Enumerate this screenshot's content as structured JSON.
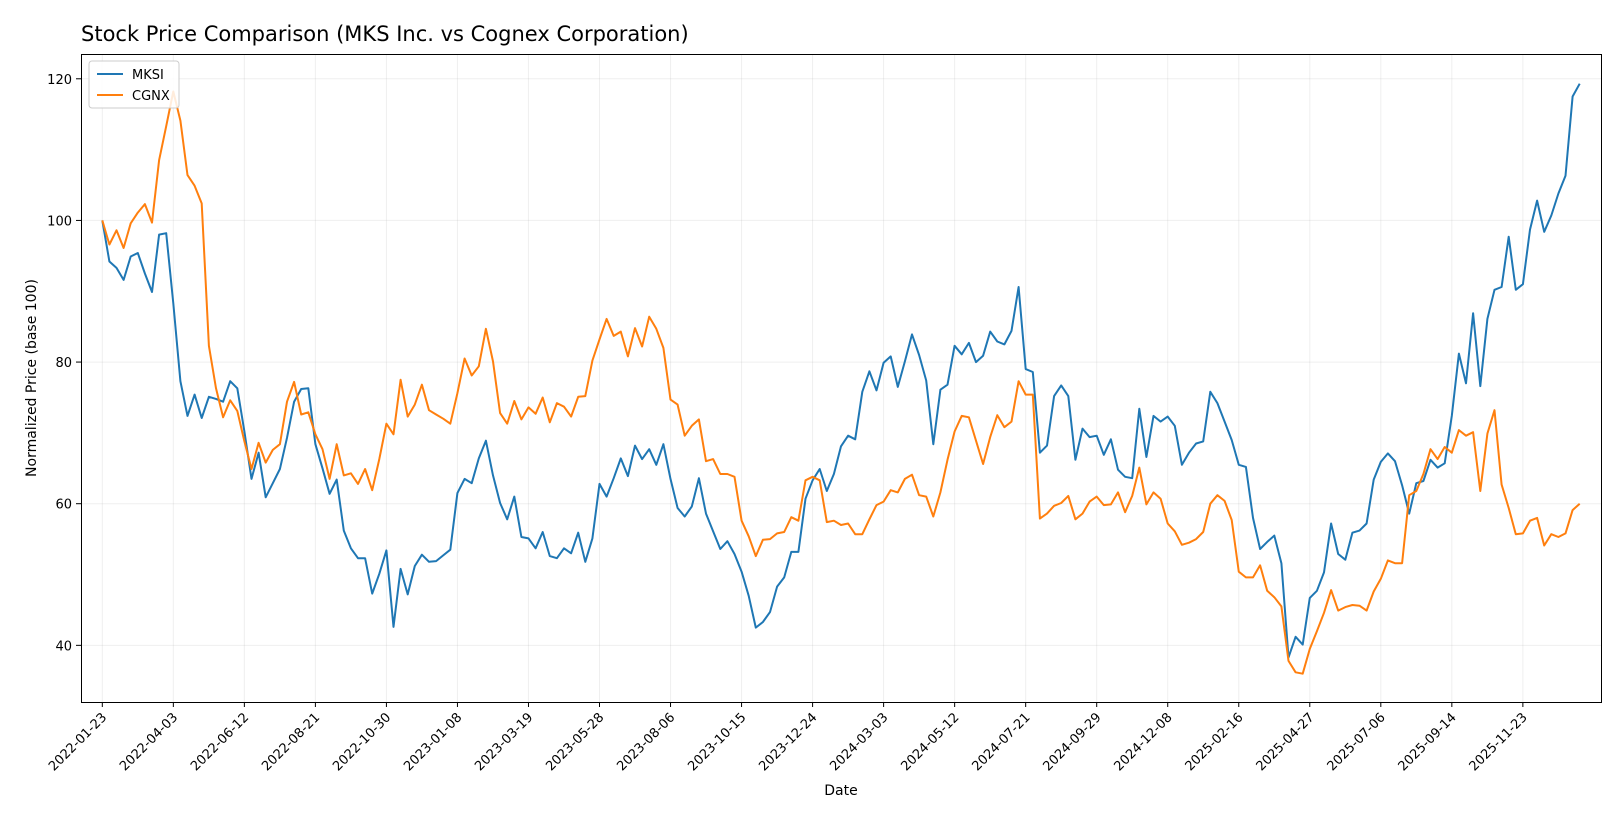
{
  "chart_data": {
    "type": "line",
    "title": "Stock Price Comparison (MKS Inc. vs Cognex Corporation)",
    "xlabel": "Date",
    "ylabel": "Normalized Price (base 100)",
    "x_tick_labels": [
      "2022-01-23",
      "2022-04-03",
      "2022-06-12",
      "2022-08-21",
      "2022-10-30",
      "2023-01-08",
      "2023-03-19",
      "2023-05-28",
      "2023-08-06",
      "2023-10-15",
      "2023-12-24",
      "2024-03-03",
      "2024-05-12",
      "2024-07-21",
      "2024-09-29",
      "2024-12-08",
      "2025-02-16",
      "2025-04-27",
      "2025-07-06",
      "2025-09-14",
      "2025-11-23"
    ],
    "y_ticks": [
      40,
      60,
      80,
      100,
      120
    ],
    "ylim": [
      32,
      123.5
    ],
    "xlim": [
      "2022-01-02",
      "2026-02-08"
    ],
    "grid": true,
    "legend_position": "top-left",
    "series": [
      {
        "name": "MKSI",
        "color": "#1f77b4",
        "start": "2022-01-23",
        "step_days": 7,
        "values": [
          100,
          94.2,
          93.3,
          91.6,
          94.9,
          95.4,
          92.5,
          89.9,
          98.0,
          98.2,
          88.3,
          77.3,
          72.4,
          75.4,
          72.1,
          75.1,
          74.8,
          74.4,
          77.3,
          76.3,
          70.2,
          63.5,
          67.2,
          60.9,
          62.9,
          64.9,
          69.3,
          74.4,
          76.2,
          76.3,
          68.4,
          65.0,
          61.4,
          63.4,
          56.2,
          53.7,
          52.3,
          52.3,
          47.3,
          50.1,
          53.4,
          42.6,
          50.8,
          47.2,
          51.2,
          52.8,
          51.8,
          51.9,
          52.7,
          53.5,
          61.5,
          63.5,
          62.9,
          66.4,
          68.9,
          64.0,
          60.1,
          57.8,
          61.0,
          55.3,
          55.1,
          53.7,
          56.0,
          52.6,
          52.3,
          53.7,
          53.0,
          55.9,
          51.8,
          55.1,
          62.8,
          61.0,
          63.6,
          66.4,
          63.9,
          68.2,
          66.3,
          67.7,
          65.5,
          68.4,
          63.5,
          59.4,
          58.2,
          59.6,
          63.6,
          58.6,
          56.1,
          53.6,
          54.7,
          52.9,
          50.4,
          47.0,
          42.5,
          43.3,
          44.7,
          48.3,
          49.6,
          53.2,
          53.2,
          60.7,
          63.3,
          64.9,
          61.8,
          64.2,
          68.1,
          69.6,
          69.1,
          75.8,
          78.7,
          76.0,
          79.9,
          80.8,
          76.5,
          80.1,
          83.9,
          81.0,
          77.4,
          68.4,
          76.1,
          76.8,
          82.3,
          81.1,
          82.7,
          80.0,
          80.9,
          84.3,
          82.9,
          82.5,
          84.4,
          90.6,
          79.0,
          78.6,
          67.2,
          68.2,
          75.2,
          76.7,
          75.2,
          66.2,
          70.6,
          69.4,
          69.6,
          66.9,
          69.1,
          64.8,
          63.8,
          63.6,
          73.4,
          66.6,
          72.4,
          71.6,
          72.3,
          71.0,
          65.5,
          67.2,
          68.5,
          68.8,
          75.8,
          74.2,
          71.6,
          69.0,
          65.5,
          65.2,
          58.0,
          53.6,
          54.6,
          55.5,
          51.6,
          38.3,
          41.2,
          40.1,
          46.7,
          47.7,
          50.3,
          57.2,
          52.9,
          52.1,
          55.9,
          56.2,
          57.2,
          63.4,
          65.9,
          67.1,
          66.0,
          62.6,
          58.6,
          62.9,
          63.2,
          66.2,
          65.1,
          65.7,
          72.4,
          81.2,
          77.0,
          86.9,
          76.6,
          86.1,
          90.2,
          90.6,
          97.7,
          90.2,
          91.0,
          98.7,
          102.8,
          98.4,
          100.7,
          103.8,
          106.3,
          117.5,
          119.3
        ]
      },
      {
        "name": "CGNX",
        "color": "#ff7f0e",
        "start": "2022-01-23",
        "step_days": 7,
        "values": [
          100,
          96.6,
          98.6,
          96.1,
          99.6,
          101.1,
          102.3,
          99.7,
          108.5,
          113.3,
          118.2,
          114.1,
          106.4,
          104.9,
          102.4,
          82.3,
          76.3,
          72.2,
          74.6,
          73.1,
          68.8,
          64.9,
          68.6,
          65.8,
          67.6,
          68.4,
          74.4,
          77.2,
          72.6,
          72.9,
          69.8,
          67.7,
          63.5,
          68.4,
          64.0,
          64.3,
          62.8,
          64.9,
          61.9,
          66.3,
          71.3,
          69.8,
          77.5,
          72.3,
          74.0,
          76.8,
          73.2,
          72.6,
          72.0,
          71.3,
          75.6,
          80.5,
          78.1,
          79.4,
          84.7,
          80.1,
          72.8,
          71.3,
          74.5,
          71.9,
          73.6,
          72.7,
          75.0,
          71.5,
          74.2,
          73.7,
          72.3,
          75.1,
          75.2,
          80.2,
          83.2,
          86.1,
          83.7,
          84.3,
          80.8,
          84.8,
          82.2,
          86.4,
          84.7,
          82.0,
          74.7,
          74.0,
          69.6,
          71.0,
          71.9,
          66.0,
          66.3,
          64.2,
          64.2,
          63.8,
          57.6,
          55.4,
          52.6,
          54.9,
          55.0,
          55.8,
          56.0,
          58.1,
          57.6,
          63.3,
          63.8,
          63.3,
          57.4,
          57.6,
          57.0,
          57.2,
          55.7,
          55.7,
          57.8,
          59.8,
          60.3,
          61.9,
          61.6,
          63.5,
          64.1,
          61.2,
          61.0,
          58.2,
          61.6,
          66.2,
          70.2,
          72.4,
          72.2,
          68.9,
          65.6,
          69.4,
          72.5,
          70.8,
          71.6,
          77.3,
          75.4,
          75.4,
          57.9,
          58.6,
          59.7,
          60.1,
          61.1,
          57.8,
          58.6,
          60.3,
          61.0,
          59.8,
          59.9,
          61.6,
          58.8,
          61.1,
          65.1,
          59.9,
          61.6,
          60.7,
          57.2,
          56.1,
          54.2,
          54.5,
          55.0,
          56.0,
          60.0,
          61.2,
          60.4,
          57.7,
          50.4,
          49.6,
          49.6,
          51.3,
          47.7,
          46.8,
          45.5,
          37.8,
          36.2,
          36.0,
          39.5,
          42.0,
          44.6,
          47.8,
          44.9,
          45.4,
          45.7,
          45.6,
          44.9,
          47.6,
          49.4,
          52.0,
          51.6,
          51.6,
          61.2,
          61.8,
          64.2,
          67.7,
          66.3,
          68.0,
          67.2,
          70.4,
          69.6,
          70.1,
          61.8,
          69.9,
          73.2,
          62.7,
          59.4,
          55.7,
          55.8,
          57.6,
          58.0,
          54.1,
          55.7,
          55.3,
          55.8,
          59.1,
          60.0
        ]
      }
    ]
  }
}
